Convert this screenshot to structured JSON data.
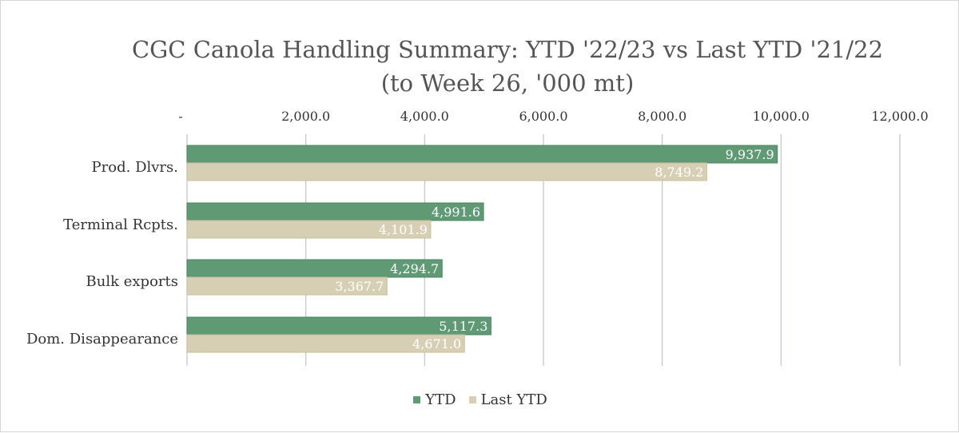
{
  "chart_data": {
    "type": "bar",
    "orientation": "horizontal",
    "title": [
      "CGC Canola Handling Summary: YTD '22/23 vs Last YTD '21/22",
      "(to Week 26, '000 mt)"
    ],
    "categories": [
      "Prod. Dlvrs.",
      "Terminal Rcpts.",
      "Bulk exports",
      "Dom. Disappearance"
    ],
    "series": [
      {
        "name": "YTD",
        "values": [
          9937.9,
          4991.6,
          4294.7,
          5117.3
        ],
        "labels": [
          "9,937.9",
          "4,991.6",
          "4,294.7",
          "5,117.3"
        ],
        "color": "#5f9a75"
      },
      {
        "name": "Last YTD",
        "values": [
          8749.2,
          4101.9,
          3367.7,
          4671.0
        ],
        "labels": [
          "8,749.2",
          "4,101.9",
          "3,367.7",
          "4,671.0"
        ],
        "color": "#d6cfb3"
      }
    ],
    "xlim": [
      0,
      12000
    ],
    "xticks": [
      0,
      2000,
      4000,
      6000,
      8000,
      10000,
      12000
    ],
    "xtick_labels": [
      "-",
      "2,000.0",
      "4,000.0",
      "6,000.0",
      "8,000.0",
      "10,000.0",
      "12,000.0"
    ],
    "axis_position": "top",
    "grid": true,
    "legend": "bottom"
  }
}
